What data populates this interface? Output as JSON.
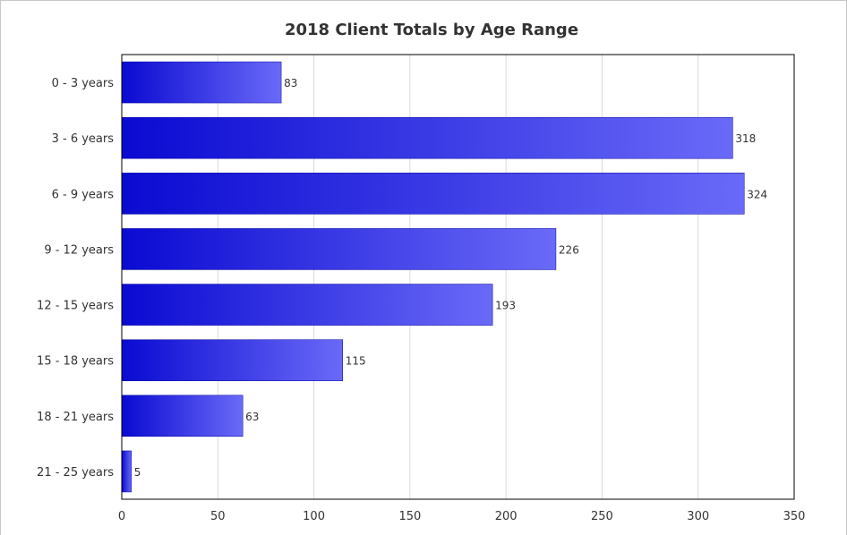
{
  "chart_data": {
    "type": "bar",
    "orientation": "horizontal",
    "title": "2018 Client Totals by Age Range",
    "categories": [
      "0 - 3 years",
      "3 - 6 years",
      "6 - 9 years",
      "9 - 12 years",
      "12 - 15 years",
      "15 - 18 years",
      "18 - 21 years",
      "21 - 25 years"
    ],
    "values": [
      83,
      318,
      324,
      226,
      193,
      115,
      63,
      5
    ],
    "xlabel": "",
    "ylabel": "",
    "xlim": [
      0,
      350
    ],
    "ticks": [
      "0",
      "50",
      "100",
      "150",
      "200",
      "250",
      "300",
      "350"
    ],
    "tick_values": [
      0,
      50,
      100,
      150,
      200,
      250,
      300,
      350
    ],
    "grid": true,
    "data_labels": true,
    "colors": {
      "bar_dark": "#0a0ad2",
      "bar_light": "#6a6af8",
      "grid": "#d9d9d9",
      "axis": "#000000"
    }
  }
}
